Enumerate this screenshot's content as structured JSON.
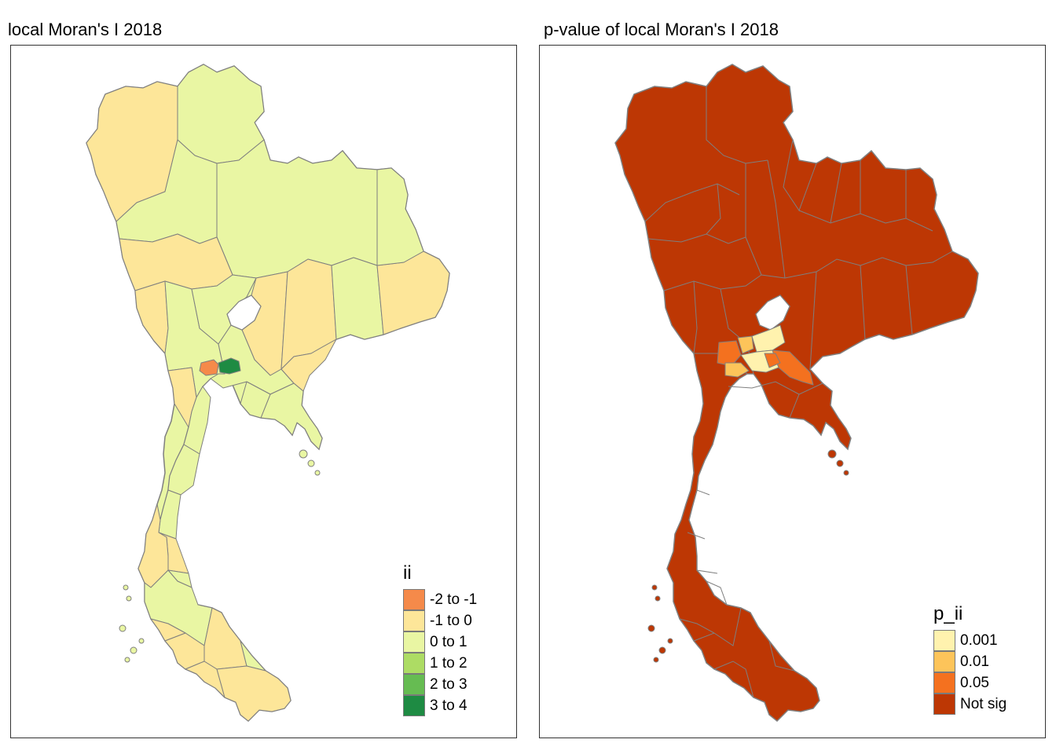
{
  "left_map": {
    "title": "local Moran's I 2018",
    "legend": {
      "title": "ii",
      "items": [
        {
          "label": "-2 to -1",
          "color": "#F58A4A"
        },
        {
          "label": "-1 to 0",
          "color": "#FDE699"
        },
        {
          "label": "0 to 1",
          "color": "#E9F6A3"
        },
        {
          "label": "1 to 2",
          "color": "#ADDC64"
        },
        {
          "label": "2 to 3",
          "color": "#66BC52"
        },
        {
          "label": "3 to 4",
          "color": "#1E8B43"
        }
      ]
    }
  },
  "right_map": {
    "title": "p-value of local Moran's I 2018",
    "legend": {
      "title": "p_ii",
      "items": [
        {
          "label": "0.001",
          "color": "#FFF2AE"
        },
        {
          "label": "0.01",
          "color": "#FDC45A"
        },
        {
          "label": "0.05",
          "color": "#F4711F"
        },
        {
          "label": "Not sig",
          "color": "#BD3704"
        }
      ]
    }
  },
  "colors": {
    "border": "#7f7f7f",
    "frame": "#333333"
  }
}
